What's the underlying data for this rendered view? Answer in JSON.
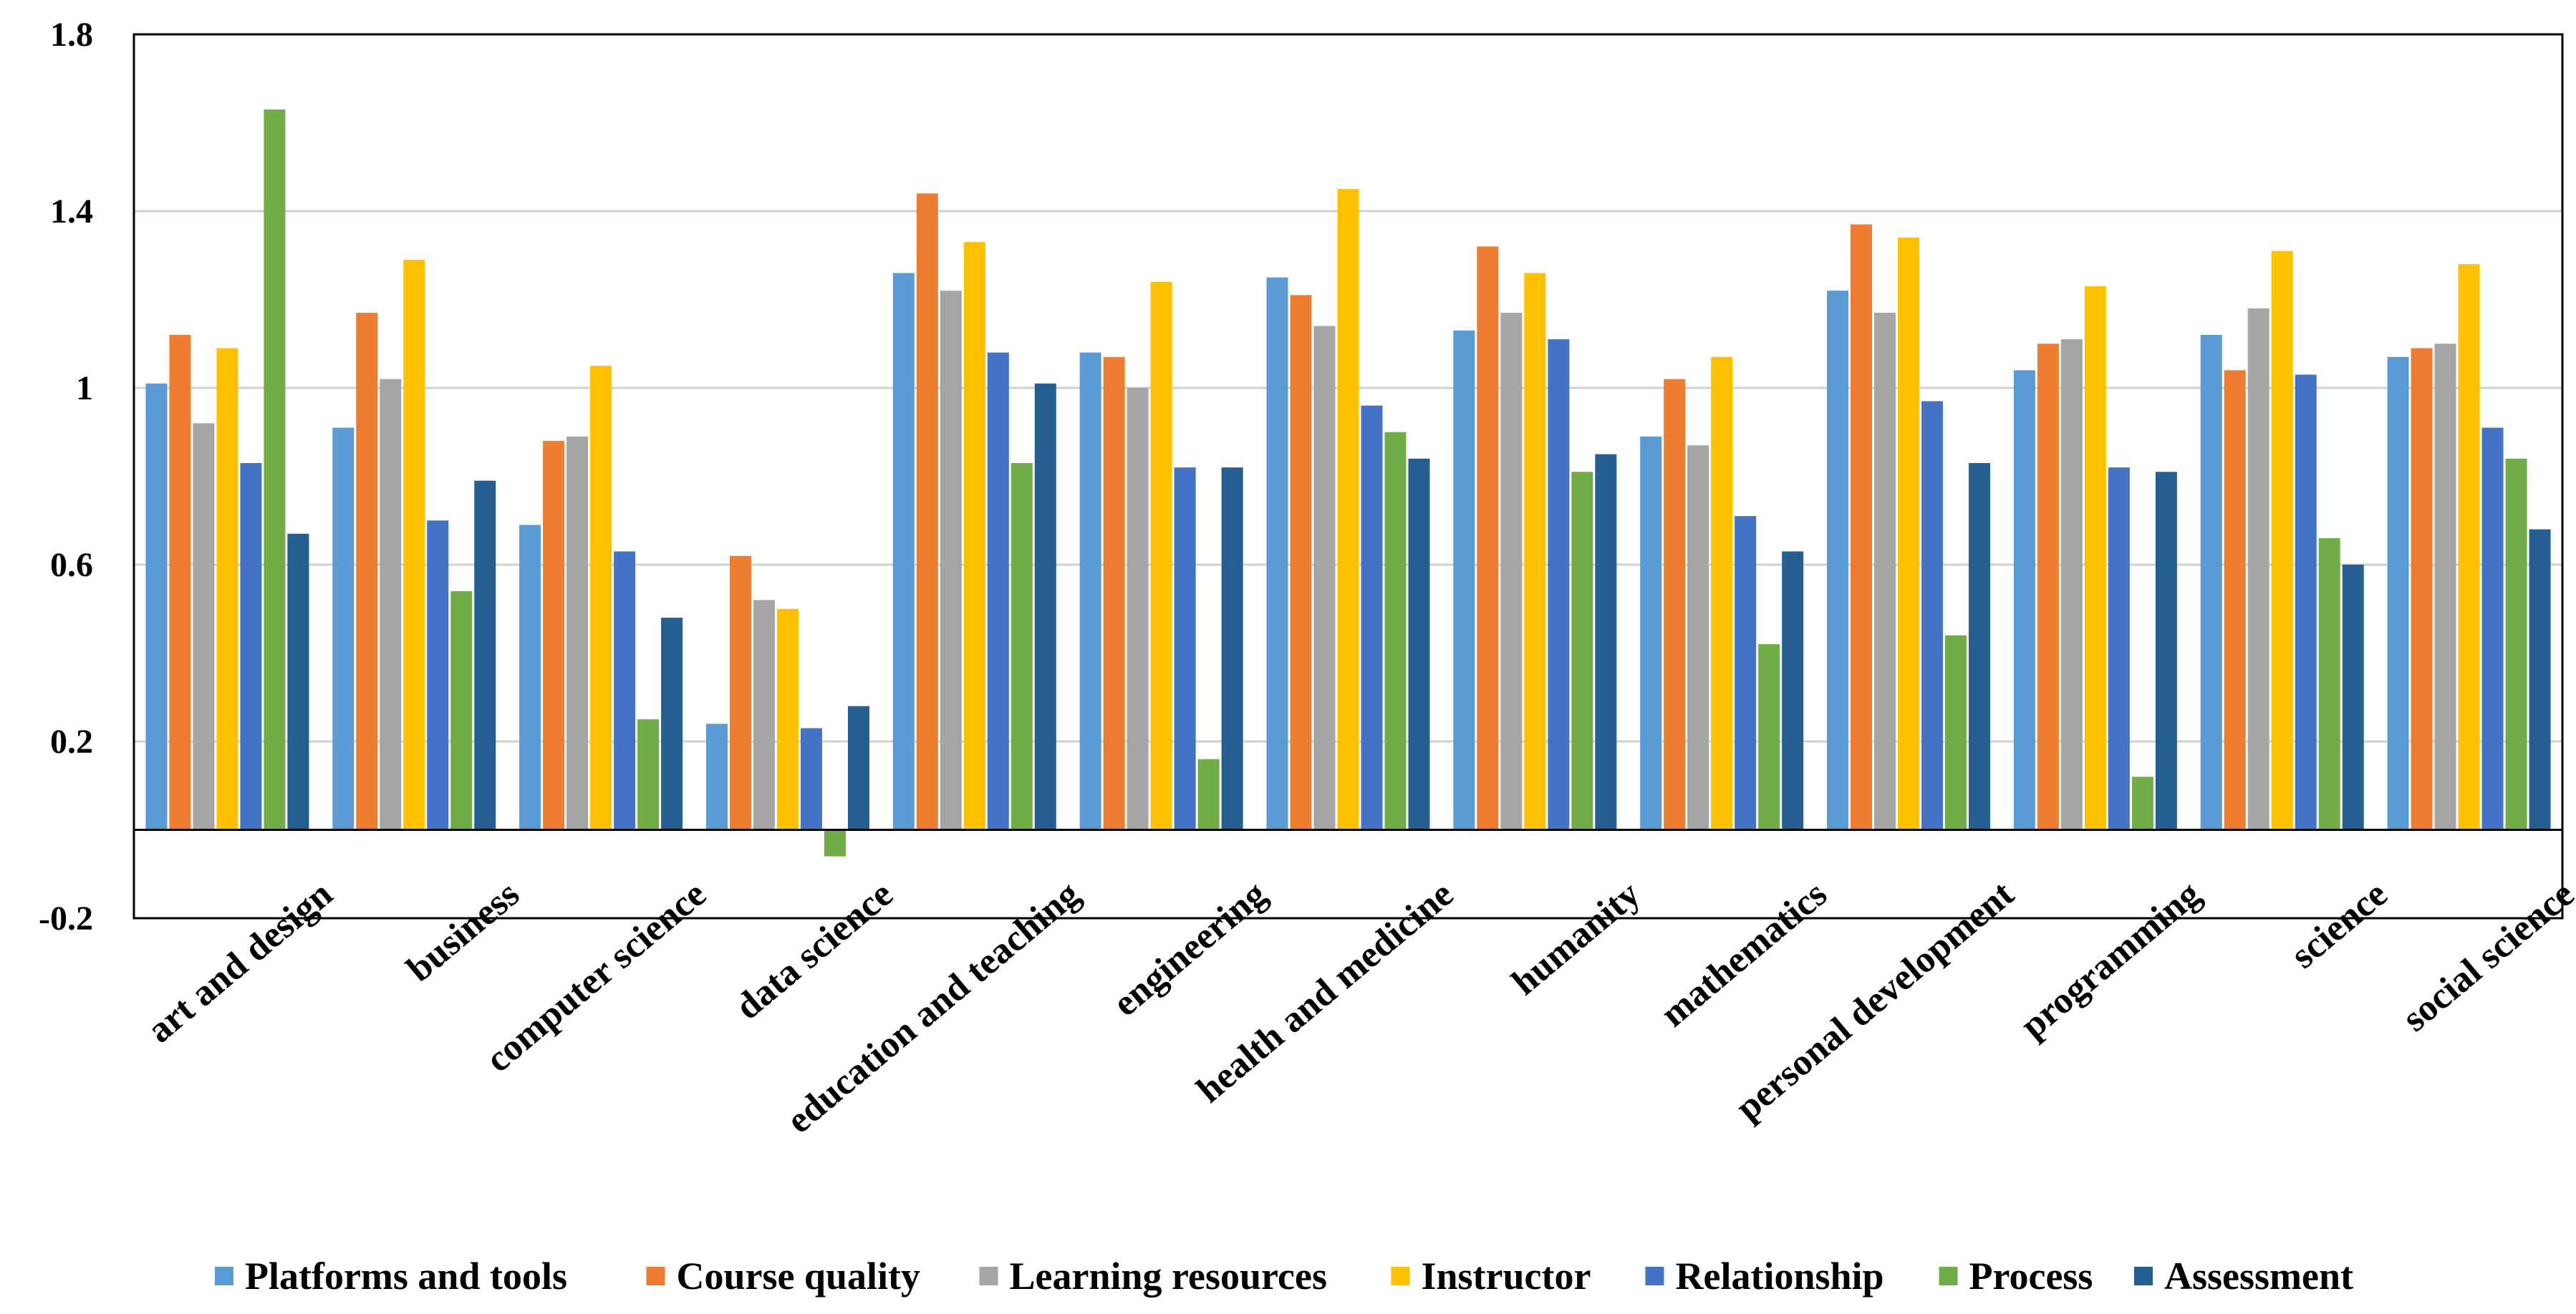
{
  "chart_data": {
    "type": "bar",
    "title": "",
    "xlabel": "",
    "ylabel": "",
    "ylim": [
      -0.2,
      1.8
    ],
    "y_ticks": [
      "1.8",
      "1.4",
      "1",
      "0.6",
      "0.2",
      "-0.2"
    ],
    "y_tick_values": [
      1.8,
      1.4,
      1.0,
      0.6,
      0.2,
      -0.2
    ],
    "grid": true,
    "legend_position": "bottom",
    "categories": [
      "art and design",
      "business",
      "computer science",
      "data science",
      "education and teaching",
      "engineering",
      "health and medicine",
      "humanity",
      "mathematics",
      "personal development",
      "programming",
      "science",
      "social science"
    ],
    "series": [
      {
        "name": "Platforms and tools",
        "color": "#5B9BD5",
        "values": [
          1.01,
          0.91,
          0.69,
          0.24,
          1.26,
          1.08,
          1.25,
          1.13,
          0.89,
          1.22,
          1.04,
          1.12,
          1.07
        ]
      },
      {
        "name": "Course quality",
        "color": "#ED7D31",
        "values": [
          1.12,
          1.17,
          0.88,
          0.62,
          1.44,
          1.07,
          1.21,
          1.32,
          1.02,
          1.37,
          1.1,
          1.04,
          1.09
        ]
      },
      {
        "name": "Learning resources",
        "color": "#A5A5A5",
        "values": [
          0.92,
          1.02,
          0.89,
          0.52,
          1.22,
          1.0,
          1.14,
          1.17,
          0.87,
          1.17,
          1.11,
          1.18,
          1.1
        ]
      },
      {
        "name": "Instructor",
        "color": "#FFC000",
        "values": [
          1.09,
          1.29,
          1.05,
          0.5,
          1.33,
          1.24,
          1.45,
          1.26,
          1.07,
          1.34,
          1.23,
          1.31,
          1.28
        ]
      },
      {
        "name": "Relationship",
        "color": "#4472C4",
        "values": [
          0.83,
          0.7,
          0.63,
          0.23,
          1.08,
          0.82,
          0.96,
          1.11,
          0.71,
          0.97,
          0.82,
          1.03,
          0.91
        ]
      },
      {
        "name": "Process",
        "color": "#70AD47",
        "values": [
          1.63,
          0.54,
          0.25,
          -0.06,
          0.83,
          0.16,
          0.9,
          0.81,
          0.42,
          0.44,
          0.12,
          0.66,
          0.84
        ]
      },
      {
        "name": "Assessment",
        "color": "#255E91",
        "values": [
          0.67,
          0.79,
          0.48,
          0.28,
          1.01,
          0.82,
          0.84,
          0.85,
          0.63,
          0.83,
          0.81,
          0.6,
          0.68
        ]
      }
    ]
  }
}
